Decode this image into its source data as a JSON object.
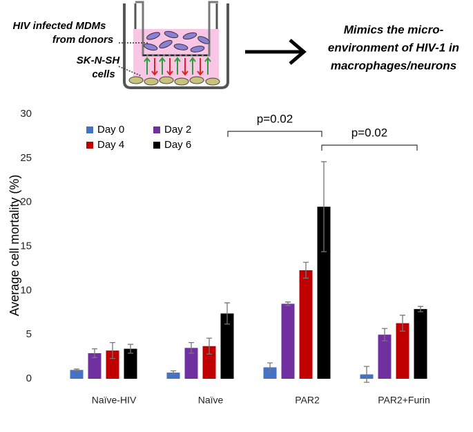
{
  "figure": {
    "mdm_label": [
      "HIV infected MDMs",
      "from donors"
    ],
    "cell_label": [
      "SK-N-SH",
      "cells"
    ],
    "caption": [
      "Mimics the micro-",
      "environment of HIV-1 in",
      "macrophages/neurons"
    ]
  },
  "chart_data": {
    "type": "bar",
    "y_label": "Average cell mortality (%)",
    "categories": [
      "Naïve-HIV",
      "Naïve",
      "PAR2",
      "PAR2+Furin"
    ],
    "series": [
      {
        "name": "Day 0",
        "color": "#4472c4",
        "values": [
          1.0,
          0.7,
          1.3,
          0.5
        ],
        "errors": [
          0.1,
          0.2,
          0.5,
          0.9
        ]
      },
      {
        "name": "Day 2",
        "color": "#7030a0",
        "values": [
          2.9,
          3.5,
          8.5,
          5.0
        ],
        "errors": [
          0.5,
          0.6,
          0.2,
          0.7
        ]
      },
      {
        "name": "Day 4",
        "color": "#c00000",
        "values": [
          3.2,
          3.7,
          12.3,
          6.3
        ],
        "errors": [
          0.9,
          0.9,
          0.9,
          0.9
        ]
      },
      {
        "name": "Day 6",
        "color": "#000000",
        "values": [
          3.4,
          7.4,
          19.5,
          7.9
        ],
        "errors": [
          0.5,
          1.2,
          5.1,
          0.3
        ]
      }
    ],
    "ylim": [
      0,
      30
    ],
    "yticks": [
      0,
      5,
      10,
      15,
      20,
      25,
      30
    ],
    "annotations": [
      {
        "text": "p=0.02"
      },
      {
        "text": "p=0.02"
      }
    ]
  }
}
